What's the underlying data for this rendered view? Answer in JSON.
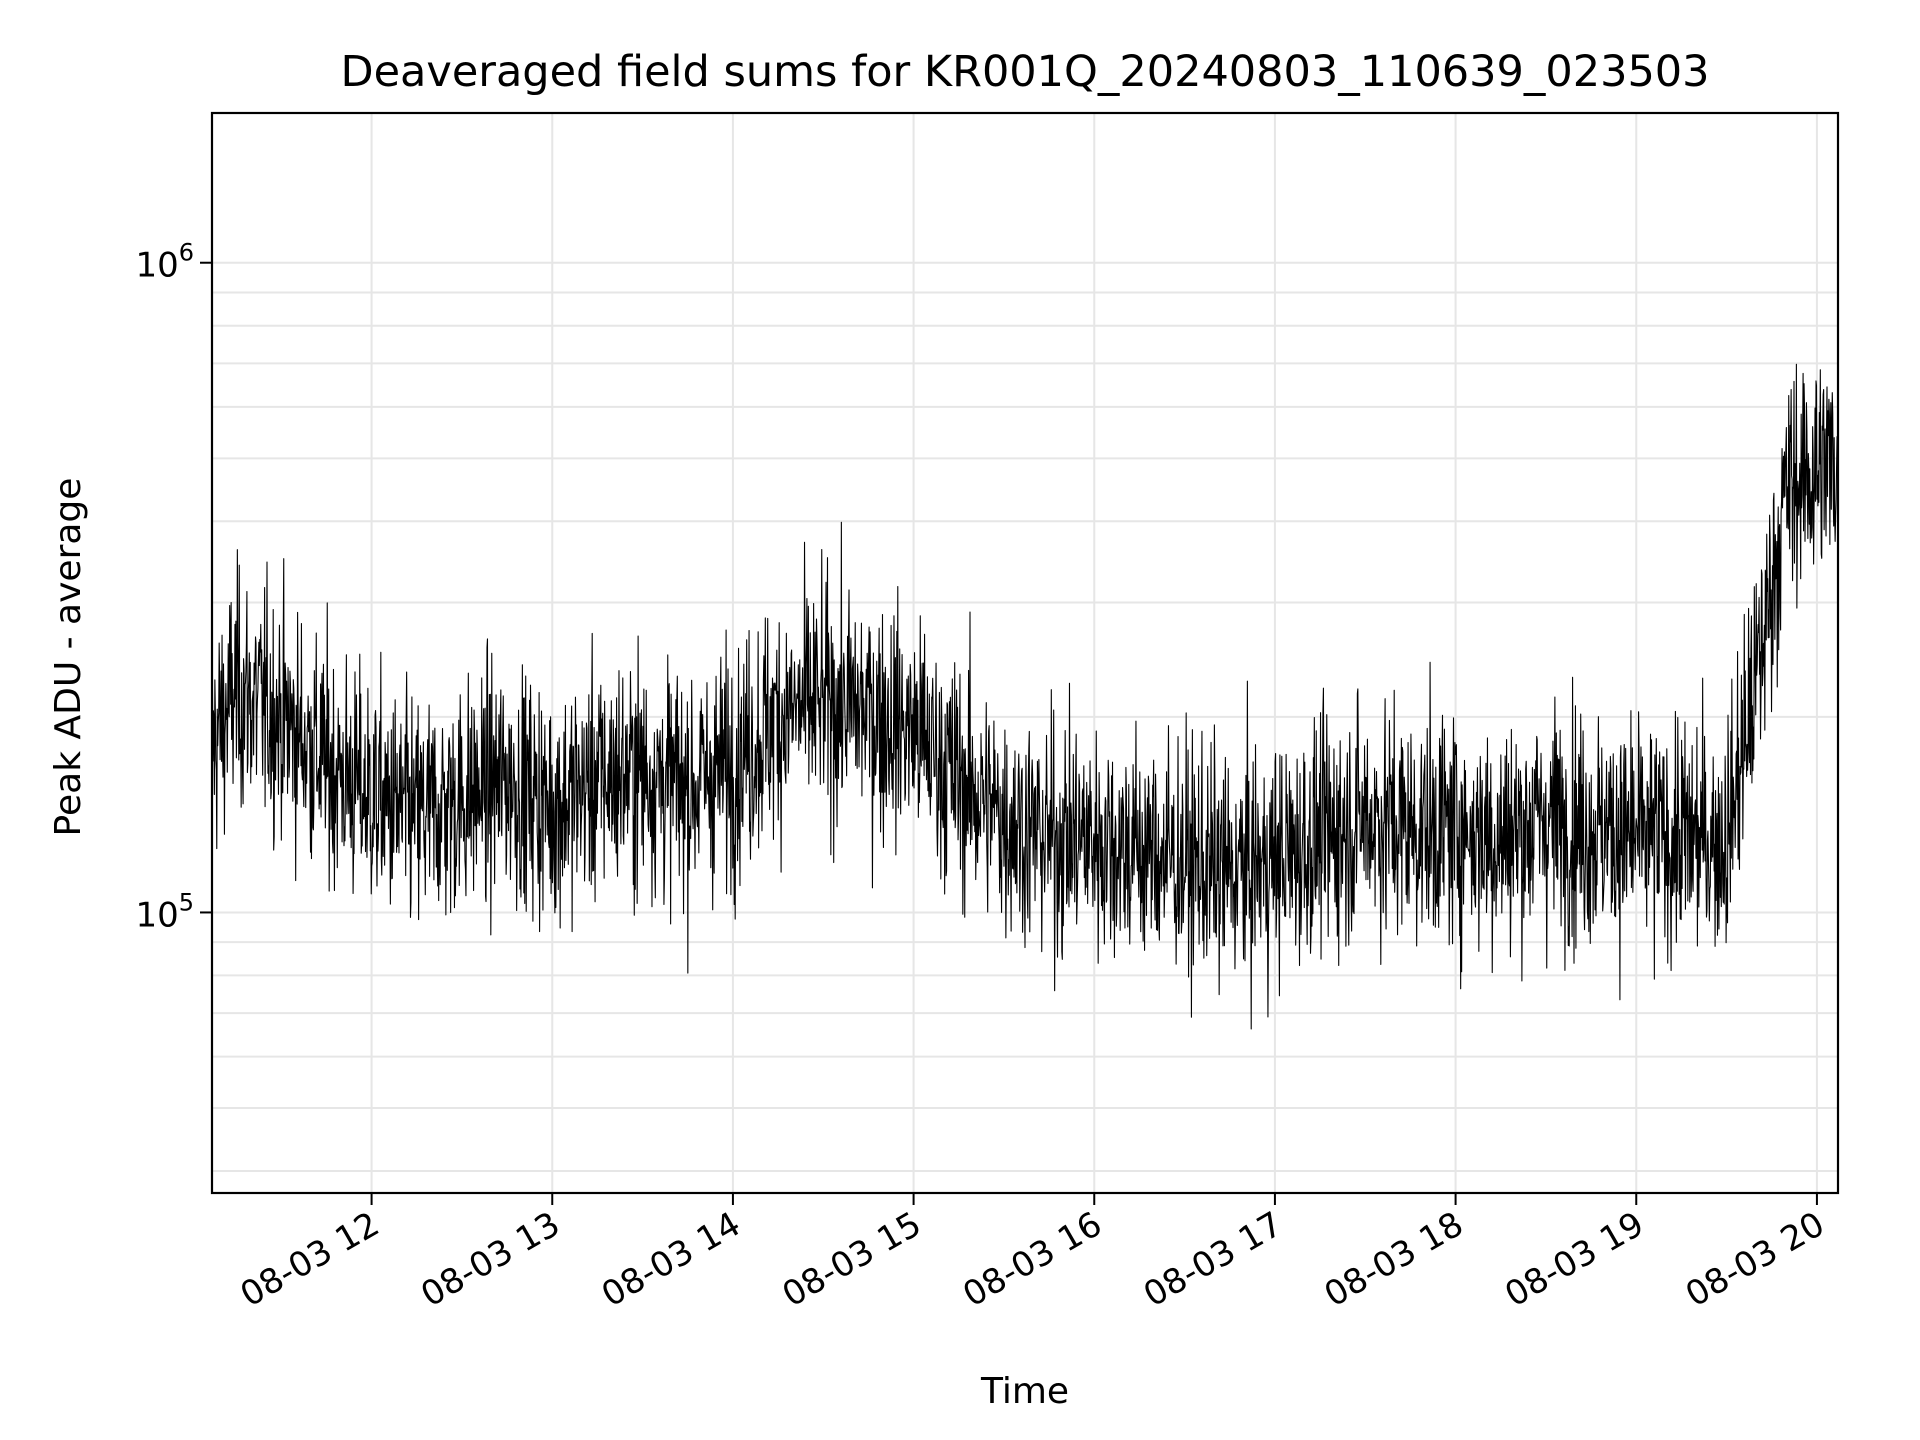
{
  "chart_data": {
    "type": "line",
    "title": "Deaveraged field sums for KR001Q_20240803_110639_023503",
    "xlabel": "Time",
    "ylabel": "Peak ADU - average",
    "x_tick_labels": [
      "08-03 12",
      "08-03 13",
      "08-03 14",
      "08-03 15",
      "08-03 16",
      "08-03 17",
      "08-03 18",
      "08-03 19",
      "08-03 20"
    ],
    "y_tick_labels": [
      {
        "base": "10",
        "exp": "5",
        "value": 100000
      },
      {
        "base": "10",
        "exp": "6",
        "value": 1000000
      }
    ],
    "x_range": [
      "2024-08-03 11:07",
      "2024-08-03 20:07"
    ],
    "ylim": [
      37000,
      1700000
    ],
    "yscale": "log",
    "grid": true,
    "line_color": "#000000",
    "series": [
      {
        "x": [
          "2024-08-03 11:07",
          "2024-08-03 11:15",
          "2024-08-03 11:30",
          "2024-08-03 11:45",
          "2024-08-03 12:00",
          "2024-08-03 12:15",
          "2024-08-03 12:30",
          "2024-08-03 12:45",
          "2024-08-03 13:00",
          "2024-08-03 13:15",
          "2024-08-03 13:30",
          "2024-08-03 13:45",
          "2024-08-03 14:00",
          "2024-08-03 14:15",
          "2024-08-03 14:30",
          "2024-08-03 14:45",
          "2024-08-03 15:00",
          "2024-08-03 15:15",
          "2024-08-03 15:30",
          "2024-08-03 15:45",
          "2024-08-03 16:00",
          "2024-08-03 16:15",
          "2024-08-03 16:30",
          "2024-08-03 16:45",
          "2024-08-03 17:00",
          "2024-08-03 17:15",
          "2024-08-03 17:30",
          "2024-08-03 17:45",
          "2024-08-03 18:00",
          "2024-08-03 18:15",
          "2024-08-03 18:30",
          "2024-08-03 18:45",
          "2024-08-03 19:00",
          "2024-08-03 19:15",
          "2024-08-03 19:30",
          "2024-08-03 19:40",
          "2024-08-03 19:50",
          "2024-08-03 20:00",
          "2024-08-03 20:07"
        ],
        "values": [
          180000,
          220000,
          200000,
          170000,
          150000,
          140000,
          150000,
          160000,
          145000,
          160000,
          165000,
          155000,
          170000,
          200000,
          210000,
          205000,
          190000,
          160000,
          140000,
          130000,
          130000,
          125000,
          120000,
          115000,
          120000,
          130000,
          140000,
          135000,
          135000,
          130000,
          140000,
          135000,
          130000,
          130000,
          130000,
          230000,
          450000,
          480000,
          500000
        ]
      }
    ]
  }
}
